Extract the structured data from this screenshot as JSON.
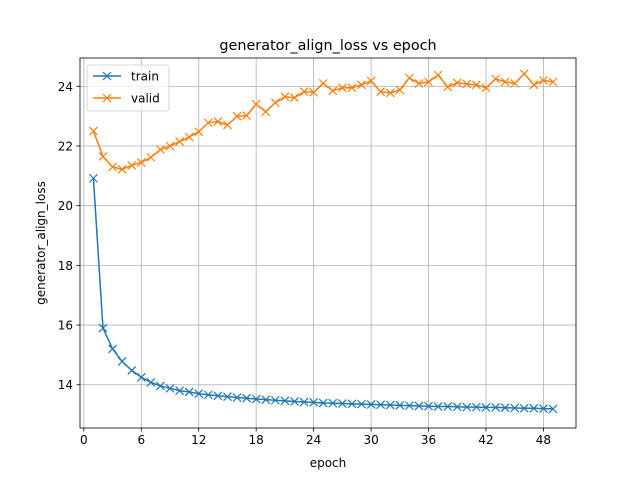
{
  "chart_data": {
    "type": "line",
    "title": "generator_align_loss vs epoch",
    "xlabel": "epoch",
    "ylabel": "generator_align_loss",
    "xlim": [
      -0.4,
      51.4
    ],
    "ylim": [
      12.55,
      24.95
    ],
    "xticks": [
      0,
      6,
      12,
      18,
      24,
      30,
      36,
      42,
      48
    ],
    "yticks": [
      14,
      16,
      18,
      20,
      22,
      24
    ],
    "grid": true,
    "legend": "top-left",
    "marker": "x",
    "series": [
      {
        "name": "train",
        "color": "#1f77b4",
        "x": [
          1,
          2,
          3,
          4,
          5,
          6,
          7,
          8,
          9,
          10,
          11,
          12,
          13,
          14,
          15,
          16,
          17,
          18,
          19,
          20,
          21,
          22,
          23,
          24,
          25,
          26,
          27,
          28,
          29,
          30,
          31,
          32,
          33,
          34,
          35,
          36,
          37,
          38,
          39,
          40,
          41,
          42,
          43,
          44,
          45,
          46,
          47,
          48,
          49
        ],
        "values": [
          20.92,
          15.9,
          15.2,
          14.78,
          14.48,
          14.25,
          14.08,
          13.96,
          13.88,
          13.8,
          13.76,
          13.7,
          13.66,
          13.63,
          13.6,
          13.57,
          13.55,
          13.52,
          13.5,
          13.48,
          13.46,
          13.44,
          13.42,
          13.41,
          13.39,
          13.38,
          13.37,
          13.36,
          13.35,
          13.34,
          13.33,
          13.32,
          13.31,
          13.3,
          13.29,
          13.28,
          13.27,
          13.27,
          13.26,
          13.25,
          13.25,
          13.24,
          13.24,
          13.23,
          13.22,
          13.21,
          13.21,
          13.2,
          13.19
        ]
      },
      {
        "name": "valid",
        "color": "#ff7f0e",
        "x": [
          1,
          2,
          3,
          4,
          5,
          6,
          7,
          8,
          9,
          10,
          11,
          12,
          13,
          14,
          15,
          16,
          17,
          18,
          19,
          20,
          21,
          22,
          23,
          24,
          25,
          26,
          27,
          28,
          29,
          30,
          31,
          32,
          33,
          34,
          35,
          36,
          37,
          38,
          39,
          40,
          41,
          42,
          43,
          44,
          45,
          46,
          47,
          48,
          49
        ],
        "values": [
          22.5,
          21.65,
          21.3,
          21.22,
          21.35,
          21.45,
          21.62,
          21.88,
          22.0,
          22.15,
          22.3,
          22.48,
          22.78,
          22.82,
          22.7,
          23.0,
          23.02,
          23.4,
          23.15,
          23.45,
          23.65,
          23.62,
          23.82,
          23.8,
          24.1,
          23.85,
          23.95,
          23.95,
          24.05,
          24.18,
          23.82,
          23.78,
          23.88,
          24.28,
          24.1,
          24.15,
          24.38,
          23.98,
          24.12,
          24.08,
          24.05,
          23.95,
          24.25,
          24.15,
          24.1,
          24.42,
          24.05,
          24.2,
          24.15
        ]
      }
    ]
  }
}
